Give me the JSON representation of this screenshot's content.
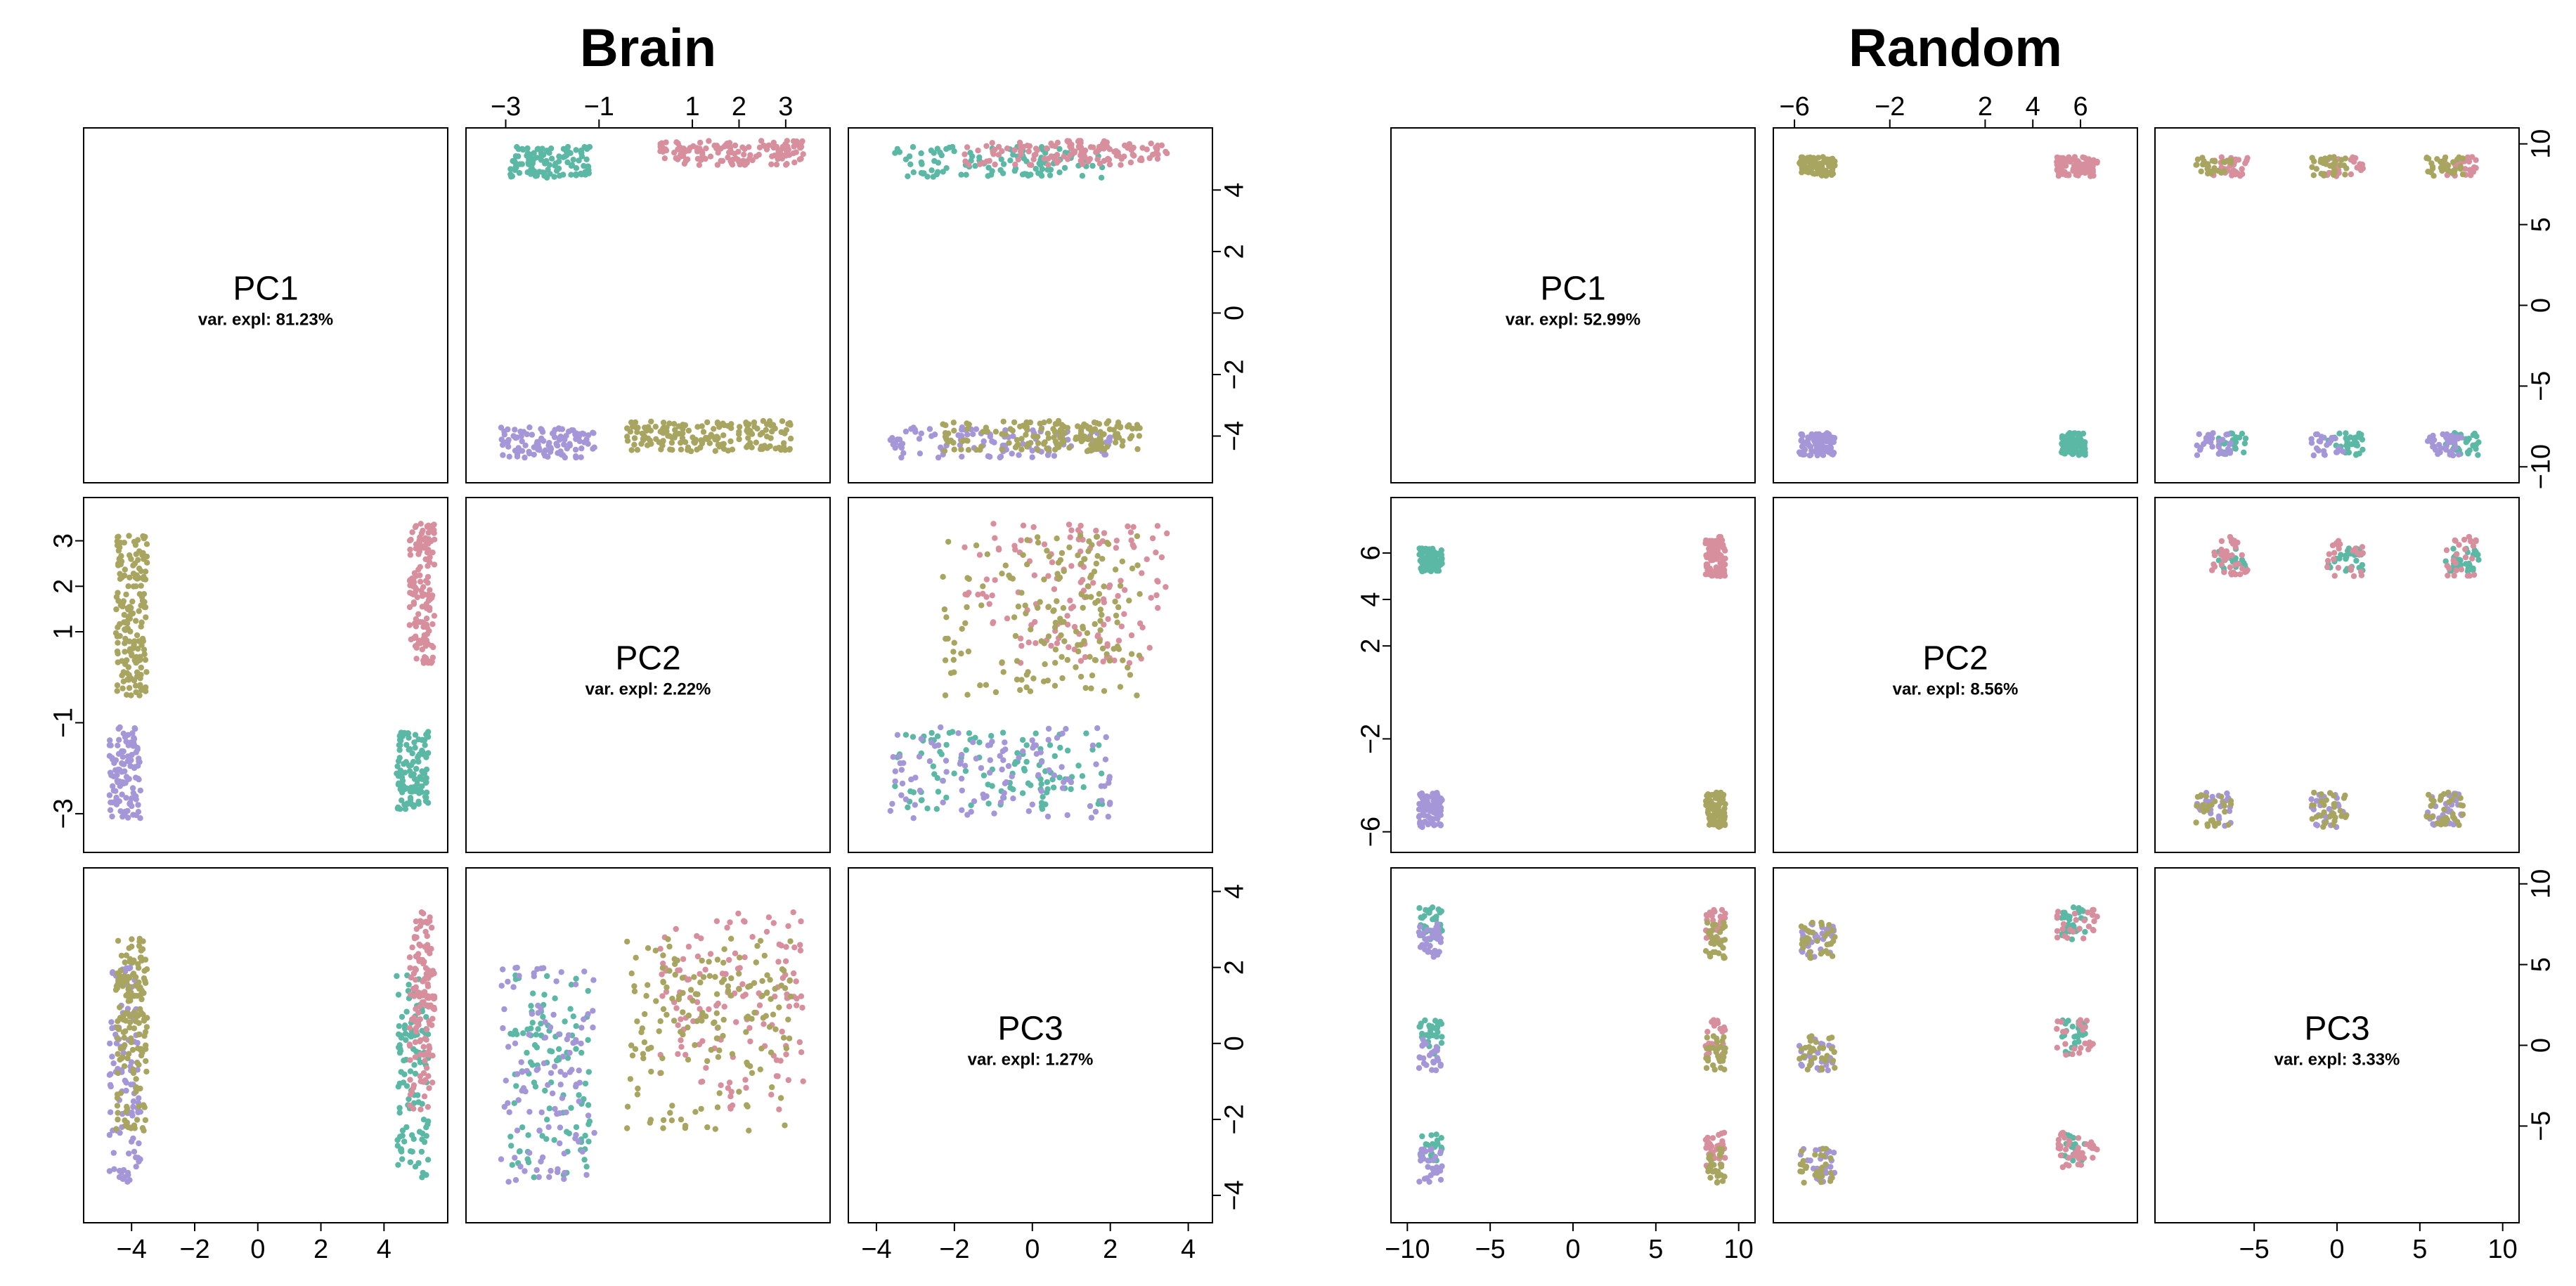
{
  "palette": {
    "teal": "#5ab8a5",
    "pink": "#d88f9d",
    "lavender": "#a596d8",
    "olive": "#a8a560"
  },
  "chart_data": [
    {
      "type": "scatter",
      "layout": "pairs-matrix",
      "title": "Brain",
      "variables": [
        {
          "name": "PC1",
          "variance_label": "var. expl: 81.23%",
          "range": [
            -5,
            5.5
          ]
        },
        {
          "name": "PC2",
          "variance_label": "var. expl: 2.22%",
          "range": [
            -3.5,
            3.6
          ]
        },
        {
          "name": "PC3",
          "variance_label": "var. expl: 1.27%",
          "range": [
            -4.3,
            4.2
          ]
        }
      ],
      "axis_ticks": {
        "top": {
          "values": [
            -3,
            -1,
            1,
            2,
            3
          ],
          "labels": [
            "−3",
            "−1",
            "1",
            "2",
            "3"
          ]
        },
        "right_row1": {
          "values": [
            4,
            2,
            0,
            -2,
            -4
          ],
          "labels": [
            "4",
            "2",
            "0",
            "−2",
            "−4"
          ]
        },
        "left_row2": {
          "values": [
            3,
            2,
            1,
            -1,
            -3
          ],
          "labels": [
            "3",
            "2",
            "1",
            "−1",
            "−3"
          ]
        },
        "right_row3": {
          "values": [
            4,
            2,
            0,
            -2,
            -4
          ],
          "labels": [
            "4",
            "2",
            "0",
            "−2",
            "−4"
          ]
        },
        "bottom_col1": {
          "values": [
            -4,
            -2,
            0,
            2,
            4
          ],
          "labels": [
            "−4",
            "−2",
            "0",
            "2",
            "4"
          ]
        },
        "bottom_col3": {
          "values": [
            -4,
            -2,
            0,
            2,
            4
          ],
          "labels": [
            "−4",
            "−2",
            "0",
            "2",
            "4"
          ]
        }
      },
      "groups": [
        {
          "color": "teal",
          "pc1": [
            4.4,
            5.4
          ],
          "pc2": [
            -2.9,
            -1.2
          ],
          "pc3_centers": [
            -3.0,
            -1.5,
            0.0,
            1.0
          ],
          "n": 110
        },
        {
          "color": "pink",
          "pc1": [
            4.8,
            5.6
          ],
          "pc2": [
            0.3,
            3.4
          ],
          "pc3_centers": [
            -1.0,
            0.5,
            1.8,
            2.7
          ],
          "n": 140
        },
        {
          "color": "lavender",
          "pc1": [
            -4.7,
            -3.7
          ],
          "pc2": [
            -3.1,
            -1.1
          ],
          "pc3_centers": [
            -3.0,
            -1.5,
            0.0,
            1.2
          ],
          "n": 110
        },
        {
          "color": "olive",
          "pc1": [
            -4.5,
            -3.5
          ],
          "pc2": [
            -0.4,
            3.2
          ],
          "pc3_centers": [
            -1.5,
            0.0,
            1.0,
            2.0
          ],
          "n": 170
        }
      ]
    },
    {
      "type": "scatter",
      "layout": "pairs-matrix",
      "title": "Random",
      "variables": [
        {
          "name": "PC1",
          "variance_label": "var. expl: 52.99%",
          "range": [
            -10,
            10
          ]
        },
        {
          "name": "PC2",
          "variance_label": "var. expl: 8.56%",
          "range": [
            -6.2,
            7.7
          ]
        },
        {
          "name": "PC3",
          "variance_label": "var. expl: 3.33%",
          "range": [
            -10,
            10
          ]
        }
      ],
      "axis_ticks": {
        "top": {
          "values": [
            -6,
            -2,
            2,
            4,
            6
          ],
          "labels": [
            "−6",
            "−2",
            "2",
            "4",
            "6"
          ]
        },
        "right_row1": {
          "values": [
            10,
            5,
            0,
            -5,
            -10
          ],
          "labels": [
            "10",
            "5",
            "0",
            "−5",
            "−10"
          ]
        },
        "left_row2": {
          "values": [
            6,
            4,
            2,
            -2,
            -6
          ],
          "labels": [
            "6",
            "4",
            "2",
            "−2",
            "−6"
          ]
        },
        "right_row3": {
          "values": [
            10,
            5,
            0,
            -5
          ],
          "labels": [
            "10",
            "5",
            "0",
            "−5"
          ]
        },
        "bottom_col1": {
          "values": [
            -10,
            -5,
            0,
            5,
            10
          ],
          "labels": [
            "−10",
            "−5",
            "0",
            "5",
            "10"
          ]
        },
        "bottom_col3": {
          "values": [
            -5,
            0,
            5,
            10
          ],
          "labels": [
            "−5",
            "0",
            "5",
            "10"
          ]
        }
      },
      "groups": [
        {
          "color": "teal",
          "pc1": [
            -9.3,
            -7.9
          ],
          "pc2": [
            5.2,
            6.2
          ],
          "pc3_centers": [
            -6.5,
            0.5,
            7.5
          ],
          "n": 90
        },
        {
          "color": "pink",
          "pc1": [
            8.0,
            9.2
          ],
          "pc2": [
            5.0,
            6.7
          ],
          "pc3_centers": [
            -6.5,
            0.5,
            7.5
          ],
          "n": 90
        },
        {
          "color": "lavender",
          "pc1": [
            -9.3,
            -7.9
          ],
          "pc2": [
            -5.8,
            -4.3
          ],
          "pc3_centers": [
            -7.5,
            -0.5,
            6.5
          ],
          "n": 90
        },
        {
          "color": "olive",
          "pc1": [
            8.0,
            9.2
          ],
          "pc2": [
            -5.8,
            -4.3
          ],
          "pc3_centers": [
            -7.5,
            -0.5,
            6.5
          ],
          "n": 90
        }
      ]
    }
  ]
}
